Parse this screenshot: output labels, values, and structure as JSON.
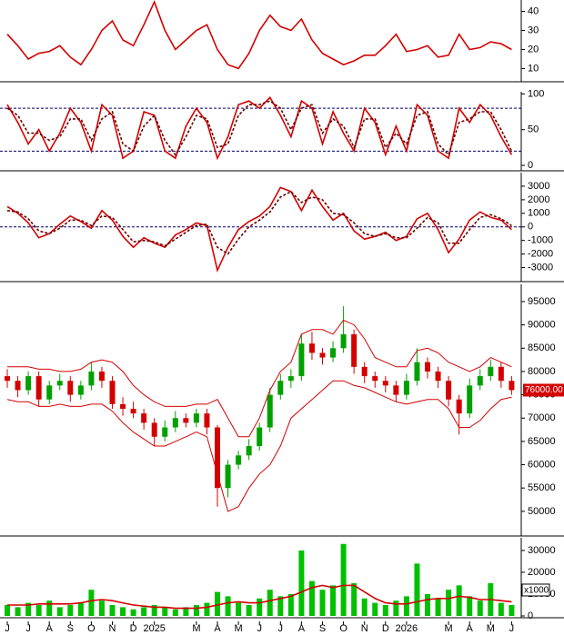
{
  "chart_data": [
    {
      "type": "line",
      "ylim": [
        4,
        46
      ],
      "yticks": [
        10,
        20,
        30,
        40
      ],
      "series": [
        {
          "color": "#d40000",
          "values": [
            28,
            22,
            15,
            18,
            19,
            22,
            16,
            12,
            20,
            30,
            35,
            25,
            22,
            33,
            45,
            30,
            20,
            25,
            30,
            33,
            20,
            12,
            10,
            18,
            30,
            38,
            32,
            30,
            36,
            25,
            18,
            15,
            12,
            14,
            17,
            17,
            22,
            28,
            19,
            20,
            22,
            16,
            17,
            28,
            20,
            21,
            24,
            23,
            20
          ]
        }
      ]
    },
    {
      "type": "line",
      "ylim": [
        -5,
        103
      ],
      "yticks": [
        0,
        50,
        100
      ],
      "levels": [
        20,
        80
      ],
      "series": [
        {
          "color": "#d40000",
          "values": [
            85,
            60,
            30,
            50,
            20,
            45,
            80,
            60,
            20,
            85,
            70,
            10,
            20,
            75,
            70,
            20,
            10,
            55,
            80,
            60,
            10,
            40,
            85,
            90,
            80,
            95,
            70,
            40,
            90,
            80,
            30,
            75,
            45,
            20,
            80,
            60,
            15,
            55,
            20,
            85,
            70,
            20,
            10,
            80,
            60,
            85,
            70,
            40,
            15
          ]
        },
        {
          "color": "#6b0000",
          "dashed": true,
          "values": [
            80,
            70,
            45,
            45,
            35,
            40,
            65,
            65,
            35,
            65,
            75,
            30,
            20,
            55,
            70,
            35,
            15,
            40,
            70,
            65,
            25,
            30,
            70,
            85,
            85,
            90,
            80,
            50,
            80,
            85,
            45,
            65,
            55,
            25,
            65,
            65,
            25,
            45,
            30,
            70,
            75,
            30,
            15,
            60,
            65,
            75,
            75,
            50,
            20
          ]
        }
      ]
    },
    {
      "type": "line",
      "ylim": [
        -3900,
        4000
      ],
      "yticks": [
        3000,
        2000,
        1000,
        0,
        -1000,
        -2000,
        -3000
      ],
      "levels": [
        0
      ],
      "series": [
        {
          "color": "#d40000",
          "values": [
            1500,
            1000,
            300,
            -800,
            -500,
            200,
            800,
            400,
            -100,
            1200,
            500,
            -700,
            -1500,
            -800,
            -1200,
            -1500,
            -600,
            -200,
            300,
            100,
            -3200,
            -1500,
            -200,
            400,
            800,
            1500,
            2900,
            2600,
            1200,
            2700,
            1500,
            500,
            1000,
            -300,
            -900,
            -700,
            -400,
            -1000,
            -700,
            600,
            1000,
            -200,
            -1900,
            -900,
            500,
            1100,
            700,
            500,
            -200
          ]
        },
        {
          "color": "#6b0000",
          "dashed": true,
          "values": [
            1200,
            1100,
            600,
            -300,
            -500,
            -100,
            500,
            500,
            100,
            800,
            700,
            -200,
            -1100,
            -1000,
            -1100,
            -1400,
            -900,
            -400,
            100,
            200,
            -1500,
            -2000,
            -900,
            0,
            500,
            1100,
            2200,
            2600,
            1800,
            2200,
            2000,
            1000,
            900,
            300,
            -500,
            -700,
            -500,
            -800,
            -800,
            -100,
            700,
            300,
            -1200,
            -1200,
            -200,
            700,
            900,
            600,
            100
          ]
        }
      ]
    },
    {
      "type": "candlestick",
      "ylim": [
        45100,
        98700
      ],
      "yticks": [
        50000,
        55000,
        60000,
        65000,
        70000,
        75000,
        80000,
        85000,
        90000,
        95000
      ],
      "up_color": "#00a000",
      "down_color": "#d40000",
      "open": [
        79000,
        78000,
        76000,
        79000,
        74000,
        77000,
        78000,
        75000,
        77000,
        80000,
        78000,
        73000,
        72000,
        71000,
        69000,
        66000,
        68000,
        70000,
        69000,
        71000,
        68000,
        55000,
        60000,
        62000,
        64000,
        68000,
        75000,
        78000,
        79000,
        86000,
        84000,
        83000,
        85000,
        88000,
        81000,
        79000,
        78000,
        77000,
        75000,
        78000,
        82000,
        80000,
        78000,
        74000,
        71000,
        77000,
        79000,
        81000,
        78000
      ],
      "high": [
        80500,
        79000,
        80000,
        80000,
        78000,
        79500,
        79000,
        78000,
        82000,
        81000,
        79000,
        74500,
        73500,
        72000,
        70000,
        69500,
        71500,
        71000,
        72000,
        72000,
        68500,
        61000,
        63000,
        65500,
        69000,
        76500,
        79500,
        80500,
        88000,
        88500,
        85000,
        86500,
        94000,
        89000,
        82000,
        80000,
        79000,
        78000,
        79500,
        85000,
        83000,
        81000,
        79000,
        75000,
        78500,
        80500,
        82500,
        82000,
        79000
      ],
      "low": [
        76500,
        74500,
        75000,
        72500,
        73000,
        76000,
        73500,
        74000,
        76000,
        76500,
        72000,
        70500,
        70000,
        67500,
        64000,
        65000,
        67000,
        68000,
        68000,
        66500,
        51000,
        53000,
        59000,
        61000,
        63000,
        67000,
        74000,
        76500,
        78000,
        82500,
        81500,
        82000,
        84000,
        79500,
        77500,
        76500,
        75500,
        73500,
        74000,
        77000,
        78500,
        76500,
        72500,
        66500,
        70000,
        76000,
        78000,
        76500,
        75000
      ],
      "close": [
        78000,
        76000,
        79000,
        74000,
        77000,
        78000,
        75000,
        77000,
        80000,
        78000,
        73000,
        72000,
        71000,
        69000,
        66000,
        68000,
        70000,
        69000,
        71000,
        68000,
        55000,
        60000,
        62000,
        64000,
        68000,
        75000,
        78000,
        79000,
        86000,
        84000,
        83000,
        85000,
        88000,
        81000,
        79000,
        78000,
        77000,
        75000,
        78000,
        82000,
        80000,
        78000,
        74000,
        71000,
        77000,
        79000,
        81000,
        78000,
        76000
      ],
      "series": [
        {
          "color": "#d40000",
          "values": [
            81000,
            81000,
            81000,
            80500,
            80500,
            80000,
            80000,
            80500,
            82000,
            82500,
            82000,
            80000,
            77000,
            75000,
            73500,
            72500,
            72500,
            72500,
            73000,
            73000,
            74000,
            70000,
            66000,
            66000,
            70000,
            76000,
            80000,
            82000,
            88000,
            89000,
            89000,
            88000,
            91000,
            90000,
            87000,
            83000,
            82000,
            81000,
            81000,
            84500,
            85000,
            84000,
            82000,
            81000,
            80000,
            81000,
            83000,
            82000,
            81000
          ]
        },
        {
          "color": "#d40000",
          "values": [
            74000,
            73500,
            73500,
            72500,
            72500,
            73000,
            72500,
            72500,
            73000,
            73000,
            71500,
            69000,
            67000,
            65500,
            64000,
            64000,
            65000,
            66000,
            67000,
            66000,
            58000,
            50000,
            51000,
            55000,
            58000,
            60000,
            64000,
            70000,
            72000,
            74000,
            76000,
            78000,
            78000,
            77000,
            76500,
            75500,
            74500,
            73500,
            73000,
            73500,
            74000,
            74000,
            72000,
            68000,
            68000,
            69500,
            72000,
            74000,
            74500
          ]
        }
      ],
      "last_label": {
        "value": 76000,
        "label": "76000.00"
      }
    },
    {
      "type": "bar",
      "ylim": [
        0,
        35800
      ],
      "yticks": [
        0,
        10000,
        20000,
        30000
      ],
      "unit_label": "x1000",
      "color": "#00c000",
      "categories": [
        "J",
        null,
        "J",
        null,
        "A",
        null,
        "S",
        null,
        "O",
        null,
        "N",
        null,
        "D",
        null,
        "2025",
        null,
        null,
        null,
        "M",
        null,
        "A",
        null,
        "M",
        null,
        "J",
        null,
        "J",
        null,
        "A",
        null,
        "S",
        null,
        "O",
        null,
        "N",
        null,
        "D",
        null,
        "2026",
        null,
        null,
        null,
        "M",
        null,
        "A",
        null,
        "M",
        null,
        "J"
      ],
      "values": [
        5000,
        4000,
        6000,
        5000,
        7000,
        4000,
        5000,
        6000,
        12000,
        7000,
        5000,
        4000,
        3000,
        4000,
        5000,
        4000,
        3000,
        4000,
        5000,
        6000,
        11000,
        9000,
        6000,
        5000,
        8000,
        12000,
        9000,
        10000,
        30000,
        16000,
        12000,
        14000,
        33000,
        15000,
        8000,
        6000,
        5000,
        7000,
        9000,
        24000,
        10000,
        8000,
        12000,
        14000,
        9000,
        7000,
        15000,
        6000,
        5000
      ],
      "series": [
        {
          "color": "#d40000",
          "values": [
            5000,
            5000,
            5000,
            5500,
            5500,
            5500,
            5500,
            6000,
            7000,
            7500,
            7000,
            6000,
            5000,
            4500,
            4000,
            4000,
            3500,
            3500,
            3500,
            4000,
            5000,
            6000,
            6500,
            6000,
            6000,
            7000,
            8000,
            9000,
            11000,
            13000,
            14000,
            13000,
            14000,
            14000,
            11000,
            8000,
            6000,
            5500,
            5500,
            6500,
            7500,
            8000,
            8000,
            9000,
            8500,
            7500,
            7500,
            7000,
            6500
          ]
        }
      ]
    }
  ]
}
